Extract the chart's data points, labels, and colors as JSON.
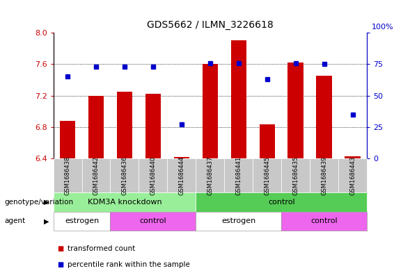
{
  "title": "GDS5662 / ILMN_3226618",
  "samples": [
    "GSM1686438",
    "GSM1686442",
    "GSM1686436",
    "GSM1686440",
    "GSM1686444",
    "GSM1686437",
    "GSM1686441",
    "GSM1686445",
    "GSM1686435",
    "GSM1686439",
    "GSM1686443"
  ],
  "transformed_counts": [
    6.88,
    7.2,
    7.25,
    7.22,
    6.42,
    7.6,
    7.9,
    6.83,
    7.62,
    7.45,
    6.43
  ],
  "percentile_ranks": [
    65,
    73,
    73,
    73,
    27,
    76,
    76,
    63,
    76,
    75,
    35
  ],
  "ylim_left": [
    6.4,
    8.0
  ],
  "ylim_right": [
    0,
    100
  ],
  "yticks_left": [
    6.4,
    6.8,
    7.2,
    7.6,
    8.0
  ],
  "yticks_right": [
    0,
    25,
    50,
    75,
    100
  ],
  "bar_color": "#CC0000",
  "dot_color": "#0000CC",
  "background_color": "#ffffff",
  "sample_label_bg": "#C8C8C8",
  "genotype_groups": [
    {
      "label": "KDM3A knockdown",
      "start": 0,
      "end": 5,
      "color": "#99EE99"
    },
    {
      "label": "control",
      "start": 5,
      "end": 11,
      "color": "#55CC55"
    }
  ],
  "agent_groups": [
    {
      "label": "estrogen",
      "start": 0,
      "end": 2,
      "color": "#FFFFFF"
    },
    {
      "label": "control",
      "start": 2,
      "end": 5,
      "color": "#EE66EE"
    },
    {
      "label": "estrogen",
      "start": 5,
      "end": 8,
      "color": "#FFFFFF"
    },
    {
      "label": "control",
      "start": 8,
      "end": 11,
      "color": "#EE66EE"
    }
  ],
  "genotype_label": "genotype/variation",
  "agent_label": "agent",
  "legend_tc_label": "transformed count",
  "legend_pr_label": "percentile rank within the sample"
}
